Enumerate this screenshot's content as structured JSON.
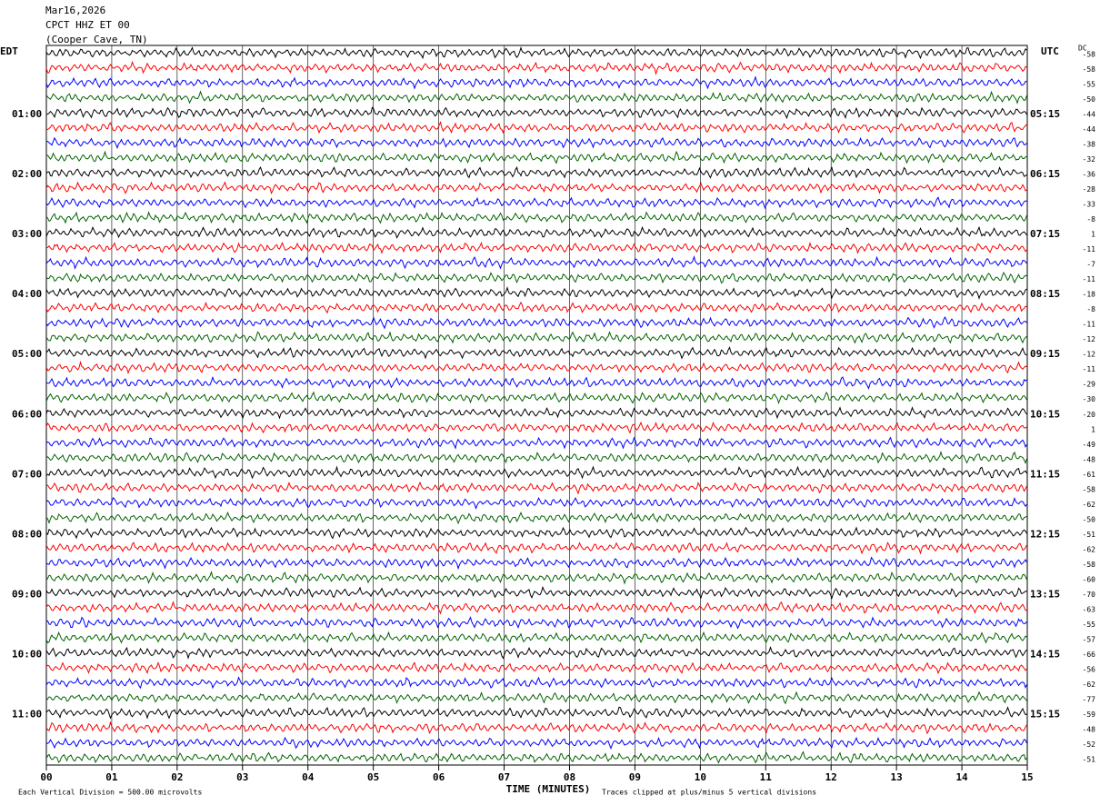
{
  "chart_data": {
    "type": "helicorder",
    "title_lines": [
      "Mar16,2026",
      "CPCT HHZ ET 00",
      "(Cooper Cave, TN)"
    ],
    "left_timezone": "EDT",
    "right_timezone": "UTC",
    "left_hour_labels": [
      "01:00",
      "02:00",
      "03:00",
      "04:00",
      "05:00",
      "06:00",
      "07:00",
      "08:00",
      "09:00",
      "10:00",
      "11:00"
    ],
    "right_hour_labels": [
      "05:15",
      "06:15",
      "07:15",
      "08:15",
      "09:15",
      "10:15",
      "11:15",
      "12:15",
      "13:15",
      "14:15",
      "15:15"
    ],
    "dc_label": "DC",
    "dc_offsets": [
      -58,
      -58,
      -55,
      -50,
      -44,
      -44,
      -38,
      -32,
      -36,
      -28,
      -33,
      -8,
      1,
      -11,
      -7,
      -11,
      -18,
      -8,
      -11,
      -12,
      -12,
      -11,
      -29,
      -30,
      -20,
      1,
      -49,
      -48,
      -61,
      -58,
      -62,
      -50,
      -51,
      -62,
      -58,
      -60,
      -70,
      -63,
      -55,
      -57,
      -66,
      -56,
      -62,
      -77,
      -59,
      -48,
      -52,
      -51
    ],
    "trace_colors": [
      "#000000",
      "#ff0000",
      "#0000ff",
      "#006400"
    ],
    "xlabel": "TIME (MINUTES)",
    "xlim": [
      0,
      15
    ],
    "xticks": [
      {
        "value": 0,
        "label": "00"
      },
      {
        "value": 1,
        "label": "01"
      },
      {
        "value": 2,
        "label": "02"
      },
      {
        "value": 3,
        "label": "03"
      },
      {
        "value": 4,
        "label": "04"
      },
      {
        "value": 5,
        "label": "05"
      },
      {
        "value": 6,
        "label": "06"
      },
      {
        "value": 7,
        "label": "07"
      },
      {
        "value": 8,
        "label": "08"
      },
      {
        "value": 9,
        "label": "09"
      },
      10,
      11,
      12,
      13,
      14,
      15
    ],
    "grid": true,
    "footnotes": [
      "Each Vertical Division =  500.00 microvolts",
      "Traces clipped at plus/minus 5 vertical divisions"
    ]
  }
}
